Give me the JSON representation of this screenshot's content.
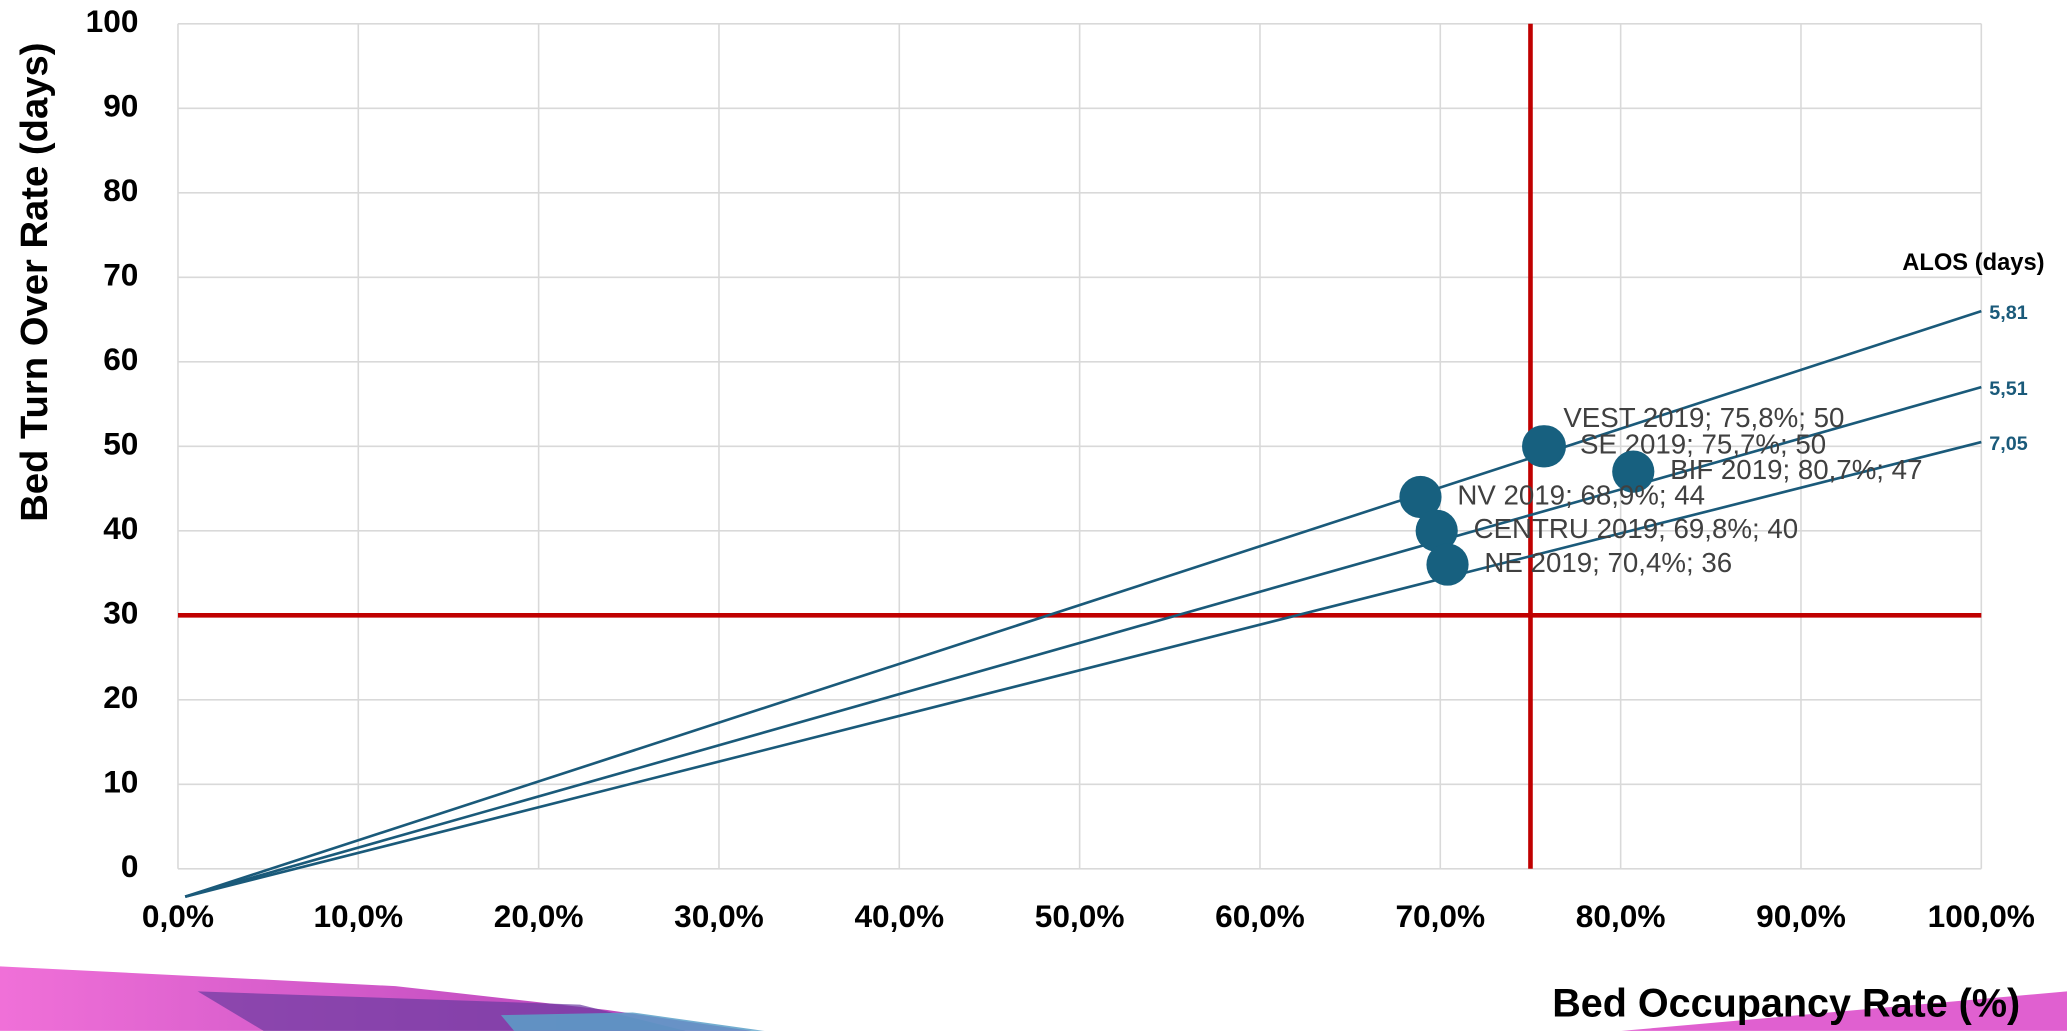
{
  "chart_data": {
    "type": "scatter",
    "xlabel": "Bed Occupancy Rate (%)",
    "ylabel": "Bed Turn Over Rate (days)",
    "xlim": [
      0,
      100
    ],
    "xticks": [
      {
        "value": 0,
        "label": "0,0%"
      },
      {
        "value": 10,
        "label": "10,0%"
      },
      {
        "value": 20,
        "label": "20,0%"
      },
      {
        "value": 30,
        "label": "30,0%"
      },
      {
        "value": 40,
        "label": "40,0%"
      },
      {
        "value": 50,
        "label": "50,0%"
      },
      {
        "value": 60,
        "label": "60,0%"
      },
      {
        "value": 70,
        "label": "70,0%"
      },
      {
        "value": 80,
        "label": "80,0%"
      },
      {
        "value": 90,
        "label": "90,0%"
      },
      {
        "value": 100,
        "label": "100,0%"
      }
    ],
    "ylim": [
      0,
      100
    ],
    "yticks": [
      0,
      10,
      20,
      30,
      40,
      50,
      60,
      70,
      80,
      90,
      100
    ],
    "grid": true,
    "series": [
      {
        "color": "#17607f",
        "x": [
          75.8,
          75.7,
          80.7,
          68.9,
          69.8,
          70.4
        ],
        "values": [
          50,
          50,
          47,
          44,
          40,
          36
        ],
        "labels": [
          "VEST 2019; 75,8%; 50",
          "SE 2019; 75,7%; 50",
          "BIF 2019; 80,7%; 47",
          "NV 2019; 68,9%; 44",
          "CENTRU 2019; 69,8%; 40",
          "NE 2019; 70,4%; 36"
        ]
      }
    ],
    "reference_lines": {
      "color": "#c00000",
      "x": 75,
      "y": 30
    },
    "alos_title": "ALOS (days)",
    "alos_lines": [
      {
        "label": "5,81",
        "color": "#1a5a7a",
        "x": [
          0.4,
          100
        ],
        "y": [
          -3.3,
          66
        ]
      },
      {
        "label": "5,51",
        "color": "#1a5a7a",
        "x": [
          0.4,
          100
        ],
        "y": [
          -3.3,
          57
        ]
      },
      {
        "label": "7,05",
        "color": "#1a5a7a",
        "x": [
          0.4,
          100
        ],
        "y": [
          -3.3,
          50.5
        ]
      }
    ]
  }
}
